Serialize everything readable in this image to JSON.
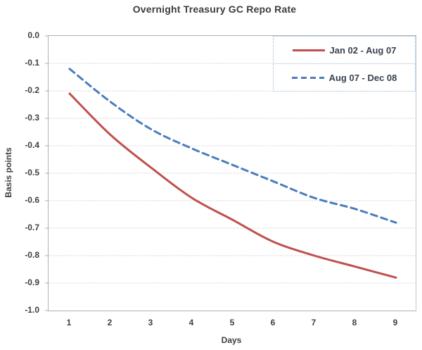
{
  "chart_data": {
    "type": "line",
    "title": "Overnight Treasury GC Repo Rate",
    "xlabel": "Days",
    "ylabel": "Basis points",
    "x": [
      1,
      2,
      3,
      4,
      5,
      6,
      7,
      8,
      9
    ],
    "xtick_labels": [
      "1",
      "2",
      "3",
      "4",
      "5",
      "6",
      "7",
      "8",
      "9"
    ],
    "ytick_labels": [
      "0.0",
      "-0.1",
      "-0.2",
      "-0.3",
      "-0.4",
      "-0.5",
      "-0.6",
      "-0.7",
      "-0.8",
      "-0.9",
      "-1.0"
    ],
    "yticks": [
      0.0,
      -0.1,
      -0.2,
      -0.3,
      -0.4,
      -0.5,
      -0.6,
      -0.7,
      -0.8,
      -0.9,
      -1.0
    ],
    "ylim": [
      -1.0,
      0.0
    ],
    "grid": "horizontal-dotted",
    "legend_position": "top-right",
    "series": [
      {
        "name": "Jan 02 - Aug 07",
        "color": "#C0504D",
        "line_style": "solid",
        "values": [
          -0.21,
          -0.36,
          -0.48,
          -0.59,
          -0.67,
          -0.75,
          -0.8,
          -0.84,
          -0.88
        ]
      },
      {
        "name": "Aug 07 - Dec 08",
        "color": "#4A7EBD",
        "line_style": "dashed",
        "values": [
          -0.12,
          -0.24,
          -0.34,
          -0.41,
          -0.47,
          -0.53,
          -0.59,
          -0.63,
          -0.68
        ]
      }
    ],
    "colors": {
      "grid": "#c9c9c9",
      "axis_border": "#a9b2ba",
      "text": "#404040",
      "legend_border": "#9cb8d2"
    }
  }
}
